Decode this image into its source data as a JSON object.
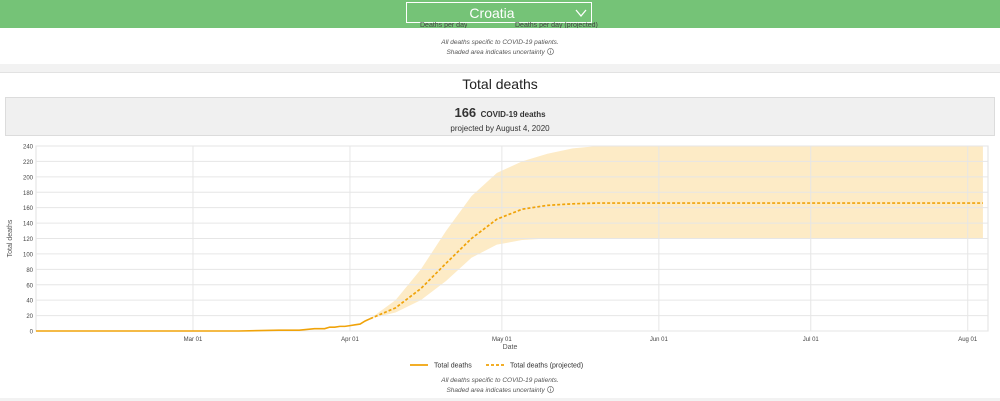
{
  "header": {
    "country": "Croatia",
    "country_select_icon": "chevron-down-icon"
  },
  "prev_section": {
    "legend_cut_left": "Deaths per day",
    "legend_cut_right": "Deaths per day (projected)",
    "note1": "All deaths specific to COVID-19 patients.",
    "note2": "Shaded area indicates uncertainty",
    "info_icon": "info-icon"
  },
  "section": {
    "title": "Total deaths",
    "summary_value": "166",
    "summary_label": "COVID-19 deaths",
    "summary_date": "projected by August 4, 2020"
  },
  "chart_data": {
    "type": "line",
    "xlabel": "Date",
    "ylabel": "Total deaths",
    "ylim": [
      0,
      240
    ],
    "yticks": [
      0,
      20,
      40,
      60,
      80,
      100,
      120,
      140,
      160,
      180,
      200,
      220,
      240
    ],
    "x_tick_labels": [
      "Mar 01",
      "Apr 01",
      "May 01",
      "Jun 01",
      "Jul 01",
      "Aug 01"
    ],
    "grid": true,
    "legend_position": "bottom-center",
    "series": [
      {
        "name": "Total deaths",
        "style": "solid",
        "color": "#f0a30a",
        "x": [
          "2020-01-30",
          "2020-03-10",
          "2020-03-18",
          "2020-03-20",
          "2020-03-22",
          "2020-03-25",
          "2020-03-27",
          "2020-03-28",
          "2020-03-29",
          "2020-03-30",
          "2020-03-31",
          "2020-04-01",
          "2020-04-02",
          "2020-04-03",
          "2020-04-04",
          "2020-04-05"
        ],
        "values": [
          0,
          0,
          1,
          1,
          1,
          3,
          3,
          5,
          5,
          6,
          6,
          7,
          8,
          9,
          13,
          16
        ]
      },
      {
        "name": "Total deaths (projected)",
        "style": "dashed",
        "color": "#f0a30a",
        "x": [
          "2020-04-05",
          "2020-04-10",
          "2020-04-15",
          "2020-04-20",
          "2020-04-25",
          "2020-04-30",
          "2020-05-05",
          "2020-05-10",
          "2020-05-15",
          "2020-05-20",
          "2020-06-01",
          "2020-07-01",
          "2020-08-04"
        ],
        "values": [
          16,
          30,
          55,
          88,
          120,
          145,
          158,
          163,
          165,
          166,
          166,
          166,
          166
        ]
      }
    ],
    "uncertainty": {
      "color": "#fdebc6",
      "x": [
        "2020-04-05",
        "2020-04-10",
        "2020-04-15",
        "2020-04-20",
        "2020-04-25",
        "2020-04-30",
        "2020-05-05",
        "2020-05-10",
        "2020-05-15",
        "2020-05-20",
        "2020-06-01",
        "2020-07-01",
        "2020-08-04"
      ],
      "lower": [
        16,
        24,
        40,
        65,
        95,
        112,
        118,
        120,
        120,
        120,
        120,
        120,
        120
      ],
      "upper": [
        16,
        40,
        80,
        130,
        175,
        205,
        220,
        230,
        237,
        240,
        240,
        240,
        240
      ]
    }
  },
  "footer": {
    "note1": "All deaths specific to COVID-19 patients.",
    "note2": "Shaded area indicates uncertainty",
    "info_icon": "info-icon"
  }
}
